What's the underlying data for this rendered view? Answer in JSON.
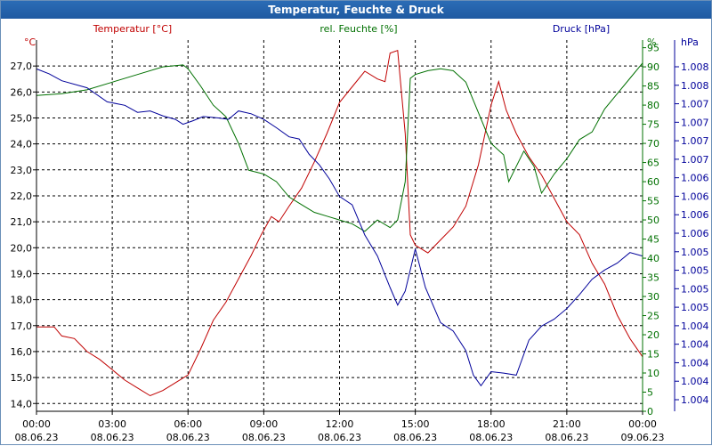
{
  "window": {
    "title": "Temperatur, Feuchte & Druck"
  },
  "colors": {
    "temperature": "#c00000",
    "humidity": "#007000",
    "pressure": "#00009a",
    "grid": "#000000",
    "title_bar": "#2060a8"
  },
  "chart_data": {
    "type": "line",
    "title": "Temperatur, Feuchte & Druck",
    "xlabel": "",
    "x_ticks": [
      {
        "time": "00:00",
        "date": "08.06.23"
      },
      {
        "time": "03:00",
        "date": "08.06.23"
      },
      {
        "time": "06:00",
        "date": "08.06.23"
      },
      {
        "time": "09:00",
        "date": "08.06.23"
      },
      {
        "time": "12:00",
        "date": "08.06.23"
      },
      {
        "time": "15:00",
        "date": "08.06.23"
      },
      {
        "time": "18:00",
        "date": "08.06.23"
      },
      {
        "time": "21:00",
        "date": "08.06.23"
      },
      {
        "time": "00:00",
        "date": "09.06.23"
      }
    ],
    "xlim_hours": [
      0,
      24
    ],
    "axes": {
      "temperature": {
        "label": "Temperatur [°C]",
        "unit": "°C",
        "ylim": [
          13.7,
          28.0
        ],
        "ticks": [
          "14,0",
          "15,0",
          "16,0",
          "17,0",
          "18,0",
          "19,0",
          "20,0",
          "21,0",
          "22,0",
          "23,0",
          "24,0",
          "25,0",
          "26,0",
          "27,0"
        ]
      },
      "humidity": {
        "label": "rel. Feuchte [%]",
        "unit": "%",
        "ylim": [
          0,
          97
        ],
        "ticks": [
          "0",
          "5",
          "10",
          "15",
          "20",
          "25",
          "30",
          "35",
          "40",
          "45",
          "50",
          "55",
          "60",
          "65",
          "70",
          "75",
          "80",
          "85",
          "90",
          "95"
        ]
      },
      "pressure": {
        "label": "Druck [hPa]",
        "unit": "hPa",
        "ticks": [
          "1.004",
          "1.004",
          "1.004",
          "1.004",
          "1.004",
          "1.005",
          "1.005",
          "1.005",
          "1.005",
          "1.006",
          "1.006",
          "1.006",
          "1.006",
          "1.007",
          "1.007",
          "1.007",
          "1.007",
          "1.008",
          "1.008"
        ]
      }
    },
    "series": [
      {
        "name": "Temperatur [°C]",
        "axis": "temperature",
        "points": [
          [
            0,
            16.95
          ],
          [
            0.7,
            16.95
          ],
          [
            1,
            16.6
          ],
          [
            1.5,
            16.5
          ],
          [
            2,
            16.0
          ],
          [
            2.5,
            15.7
          ],
          [
            3,
            15.3
          ],
          [
            3.5,
            14.9
          ],
          [
            4,
            14.6
          ],
          [
            4.5,
            14.3
          ],
          [
            5,
            14.5
          ],
          [
            5.5,
            14.8
          ],
          [
            6,
            15.1
          ],
          [
            6.5,
            16.1
          ],
          [
            7,
            17.2
          ],
          [
            7.5,
            17.9
          ],
          [
            8,
            18.8
          ],
          [
            8.5,
            19.7
          ],
          [
            8.9,
            20.5
          ],
          [
            9.3,
            21.2
          ],
          [
            9.6,
            21.0
          ],
          [
            10,
            21.6
          ],
          [
            10.5,
            22.3
          ],
          [
            11,
            23.3
          ],
          [
            11.5,
            24.4
          ],
          [
            12,
            25.6
          ],
          [
            12.5,
            26.2
          ],
          [
            13,
            26.8
          ],
          [
            13.5,
            26.5
          ],
          [
            13.8,
            26.4
          ],
          [
            14,
            27.5
          ],
          [
            14.3,
            27.6
          ],
          [
            14.6,
            24.4
          ],
          [
            14.8,
            20.5
          ],
          [
            15,
            20.1
          ],
          [
            15.5,
            19.8
          ],
          [
            16,
            20.3
          ],
          [
            16.5,
            20.8
          ],
          [
            17,
            21.6
          ],
          [
            17.5,
            23.2
          ],
          [
            18,
            25.5
          ],
          [
            18.3,
            26.4
          ],
          [
            18.6,
            25.3
          ],
          [
            19,
            24.4
          ],
          [
            19.5,
            23.5
          ],
          [
            20,
            22.8
          ],
          [
            20.5,
            21.9
          ],
          [
            21,
            21.0
          ],
          [
            21.5,
            20.5
          ],
          [
            22,
            19.4
          ],
          [
            22.5,
            18.6
          ],
          [
            23,
            17.4
          ],
          [
            23.5,
            16.5
          ],
          [
            24,
            15.8
          ]
        ]
      },
      {
        "name": "rel. Feuchte [%]",
        "axis": "humidity",
        "points": [
          [
            0,
            82.5
          ],
          [
            1,
            83
          ],
          [
            2,
            84
          ],
          [
            3,
            86
          ],
          [
            4,
            88
          ],
          [
            5,
            90
          ],
          [
            5.8,
            90.5
          ],
          [
            6,
            89.5
          ],
          [
            6.5,
            85
          ],
          [
            7,
            80
          ],
          [
            7.5,
            77
          ],
          [
            8,
            70
          ],
          [
            8.4,
            63
          ],
          [
            9,
            62
          ],
          [
            9.5,
            60
          ],
          [
            10,
            56
          ],
          [
            10.5,
            54
          ],
          [
            11,
            52
          ],
          [
            11.5,
            51
          ],
          [
            12,
            50
          ],
          [
            12.5,
            49
          ],
          [
            13,
            47
          ],
          [
            13.5,
            50
          ],
          [
            14,
            48
          ],
          [
            14.3,
            50
          ],
          [
            14.6,
            60
          ],
          [
            14.8,
            87
          ],
          [
            15,
            88
          ],
          [
            15.5,
            89
          ],
          [
            16,
            89.5
          ],
          [
            16.5,
            89
          ],
          [
            17,
            86
          ],
          [
            17.5,
            78
          ],
          [
            18,
            70
          ],
          [
            18.5,
            67
          ],
          [
            18.7,
            60
          ],
          [
            19.3,
            68
          ],
          [
            19.7,
            64
          ],
          [
            20,
            57
          ],
          [
            20.5,
            62
          ],
          [
            21,
            66
          ],
          [
            21.5,
            71
          ],
          [
            22,
            73
          ],
          [
            22.5,
            79
          ],
          [
            23,
            83
          ],
          [
            23.5,
            87
          ],
          [
            24,
            91
          ]
        ]
      },
      {
        "name": "Druck [hPa]",
        "axis": "pressure",
        "points": [
          [
            0,
            1.00812
          ],
          [
            0.5,
            1.00805
          ],
          [
            1,
            1.00795
          ],
          [
            2,
            1.00785
          ],
          [
            2.8,
            1.00765
          ],
          [
            3.5,
            1.0076
          ],
          [
            4,
            1.0075
          ],
          [
            4.5,
            1.00752
          ],
          [
            5,
            1.00745
          ],
          [
            5.5,
            1.0074
          ],
          [
            5.8,
            1.00733
          ],
          [
            6.2,
            1.00738
          ],
          [
            6.6,
            1.00744
          ],
          [
            7.2,
            1.00742
          ],
          [
            7.6,
            1.0074
          ],
          [
            8,
            1.00752
          ],
          [
            8.5,
            1.00748
          ],
          [
            9,
            1.0074
          ],
          [
            9.5,
            1.00728
          ],
          [
            10,
            1.00715
          ],
          [
            10.4,
            1.00712
          ],
          [
            10.8,
            1.0069
          ],
          [
            11.2,
            1.00675
          ],
          [
            11.6,
            1.00655
          ],
          [
            12,
            1.0063
          ],
          [
            12.5,
            1.00618
          ],
          [
            13,
            1.00575
          ],
          [
            13.5,
            1.00545
          ],
          [
            14,
            1.005
          ],
          [
            14.3,
            1.00475
          ],
          [
            14.6,
            1.00495
          ],
          [
            15,
            1.00555
          ],
          [
            15.4,
            1.005
          ],
          [
            16,
            1.0045
          ],
          [
            16.5,
            1.00438
          ],
          [
            17,
            1.0041
          ],
          [
            17.3,
            1.00375
          ],
          [
            17.6,
            1.0036
          ],
          [
            18,
            1.0038
          ],
          [
            18.5,
            1.00378
          ],
          [
            19,
            1.00375
          ],
          [
            19.5,
            1.00425
          ],
          [
            20,
            1.00445
          ],
          [
            20.5,
            1.00455
          ],
          [
            21,
            1.0047
          ],
          [
            21.5,
            1.0049
          ],
          [
            22,
            1.00512
          ],
          [
            22.5,
            1.00525
          ],
          [
            23,
            1.00535
          ],
          [
            23.5,
            1.0055
          ],
          [
            24,
            1.00545
          ]
        ]
      }
    ]
  }
}
